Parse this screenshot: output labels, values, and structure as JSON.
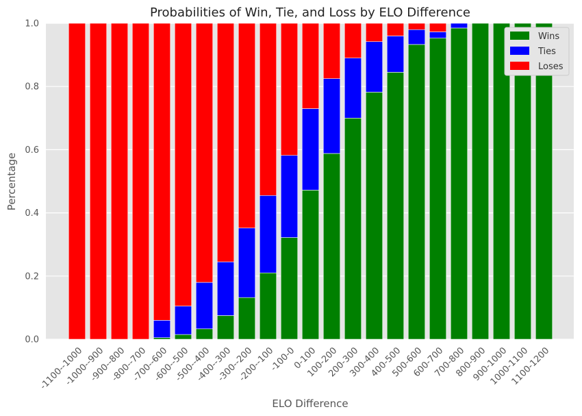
{
  "chart_data": {
    "type": "bar",
    "stacked": true,
    "title": "Probabilities of Win, Tie, and Loss by ELO Difference",
    "xlabel": "ELO Difference",
    "ylabel": "Percentage",
    "ylim": [
      0,
      1
    ],
    "yticks": [
      "0.0",
      "0.2",
      "0.4",
      "0.6",
      "0.8",
      "1.0"
    ],
    "grid": true,
    "legend_position": "top-right",
    "categories": [
      "-1100--1000",
      "-1000--900",
      "-900--800",
      "-800--700",
      "-700--600",
      "-600--500",
      "-500--400",
      "-400--300",
      "-300--200",
      "-200--100",
      "-100-0",
      "0-100",
      "100-200",
      "200-300",
      "300-400",
      "400-500",
      "500-600",
      "600-700",
      "700-800",
      "800-900",
      "900-1000",
      "1000-1100",
      "1100-1200"
    ],
    "series": [
      {
        "name": "Wins",
        "color": "#008000",
        "values": [
          0,
          0,
          0,
          0,
          0.005,
          0.015,
          0.033,
          0.075,
          0.132,
          0.21,
          0.322,
          0.472,
          0.588,
          0.7,
          0.782,
          0.845,
          0.933,
          0.953,
          0.985,
          1,
          1,
          1,
          1
        ]
      },
      {
        "name": "Ties",
        "color": "#0000ff",
        "values": [
          0,
          0,
          0,
          0,
          0.055,
          0.09,
          0.147,
          0.17,
          0.22,
          0.245,
          0.26,
          0.258,
          0.237,
          0.19,
          0.16,
          0.115,
          0.047,
          0.02,
          0.015,
          0,
          0,
          0,
          0
        ]
      },
      {
        "name": "Loses",
        "color": "#ff0000",
        "values": [
          1,
          1,
          1,
          1,
          0.94,
          0.895,
          0.82,
          0.755,
          0.648,
          0.545,
          0.418,
          0.27,
          0.175,
          0.11,
          0.058,
          0.04,
          0.02,
          0.027,
          0,
          0,
          0,
          0,
          0
        ]
      }
    ]
  }
}
